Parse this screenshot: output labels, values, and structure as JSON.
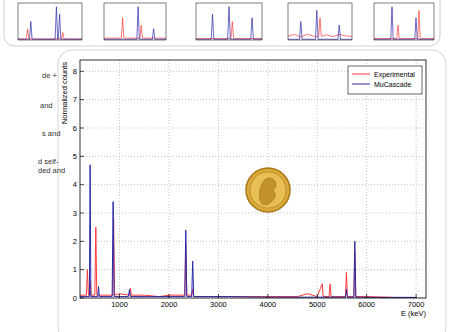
{
  "chart_data": [
    {
      "type": "line",
      "xlabel": "E (keV)",
      "ylabel": "Normalized counts",
      "xlim": [
        200,
        7200
      ],
      "ylim": [
        0,
        8.4
      ],
      "xticks": [
        1000,
        2000,
        3000,
        4000,
        5000,
        6000,
        7000
      ],
      "yticks": [
        0,
        1,
        2,
        3,
        4,
        5,
        6,
        7,
        8
      ],
      "grid": true,
      "legend": "upper right",
      "series": [
        {
          "name": "Experimental",
          "color": "#ff3b3b",
          "x": [
            200,
            330,
            350,
            370,
            395,
            410,
            425,
            500,
            520,
            540,
            860,
            880,
            900,
            1000,
            1200,
            1220,
            1240,
            1500,
            1800,
            2000,
            2320,
            2340,
            2360,
            2460,
            2480,
            2500,
            3000,
            3500,
            4000,
            4600,
            4800,
            5000,
            5100,
            5120,
            5240,
            5260,
            5280,
            5570,
            5590,
            5610,
            5740,
            5760,
            5780,
            6000,
            6600,
            7000
          ],
          "values": [
            0.1,
            0.1,
            1.0,
            0.1,
            0.1,
            0.6,
            0.1,
            0.1,
            2.5,
            0.1,
            0.1,
            2.8,
            0.1,
            0.15,
            0.1,
            0.35,
            0.1,
            0.1,
            0.05,
            0.1,
            0.1,
            1.9,
            0.1,
            0.1,
            0.3,
            0.05,
            0.05,
            0.05,
            0.05,
            0.05,
            0.15,
            0.05,
            0.5,
            0.05,
            0.05,
            0.5,
            0.05,
            0.05,
            0.9,
            0.05,
            0.05,
            1.6,
            0.05,
            0.05,
            0.02,
            0.02
          ]
        },
        {
          "name": "MuCascade",
          "color": "#2a2aa8",
          "x": [
            200,
            390,
            405,
            420,
            560,
            575,
            590,
            850,
            870,
            890,
            1180,
            1200,
            1220,
            1600,
            2320,
            2340,
            2360,
            2460,
            2480,
            2500,
            3200,
            4000,
            5570,
            5590,
            5610,
            5740,
            5760,
            5780,
            6200,
            7000
          ],
          "values": [
            0.05,
            0.05,
            4.7,
            0.05,
            0.05,
            0.4,
            0.05,
            0.05,
            3.4,
            0.05,
            0.05,
            0.3,
            0.05,
            0.05,
            0.05,
            2.4,
            0.05,
            0.05,
            1.3,
            0.05,
            0.05,
            0.03,
            0.03,
            0.3,
            0.03,
            0.03,
            2.0,
            0.03,
            0.02,
            0.02
          ]
        }
      ]
    },
    {
      "type": "line",
      "xlim": [
        0,
        100
      ],
      "ylim": [
        0,
        10
      ],
      "tick_labels": false,
      "series": [
        {
          "color": "#ff3b3b",
          "x": [
            0,
            13,
            15,
            17,
            68,
            70,
            72,
            100
          ],
          "values": [
            0.3,
            0.3,
            3,
            0.3,
            0.3,
            2,
            0.3,
            0.3
          ]
        },
        {
          "color": "#2a2aa8",
          "x": [
            0,
            18,
            20,
            22,
            58,
            60,
            62,
            63,
            65,
            67,
            100
          ],
          "values": [
            0.2,
            0.2,
            5,
            0.2,
            0.2,
            9,
            0.2,
            0.2,
            7,
            0.2,
            0.2
          ]
        }
      ]
    },
    {
      "type": "line",
      "xlim": [
        0,
        100
      ],
      "ylim": [
        0,
        10
      ],
      "tick_labels": false,
      "series": [
        {
          "color": "#ff3b3b",
          "x": [
            0,
            28,
            30,
            32,
            58,
            60,
            62,
            100
          ],
          "values": [
            0.5,
            0.5,
            6,
            0.5,
            0.5,
            4,
            0.5,
            0.5
          ]
        },
        {
          "color": "#2a2aa8",
          "x": [
            0,
            53,
            55,
            57,
            78,
            80,
            82,
            100
          ],
          "values": [
            0.2,
            0.2,
            9,
            0.2,
            0.2,
            3,
            0.2,
            0.2
          ]
        }
      ]
    },
    {
      "type": "line",
      "xlim": [
        0,
        100
      ],
      "ylim": [
        0,
        10
      ],
      "tick_labels": false,
      "series": [
        {
          "color": "#ff3b3b",
          "x": [
            0,
            53,
            55,
            57,
            100
          ],
          "values": [
            0.4,
            0.4,
            5,
            0.4,
            0.4
          ]
        },
        {
          "color": "#2a2aa8",
          "x": [
            0,
            23,
            25,
            27,
            48,
            50,
            52,
            83,
            85,
            87,
            100
          ],
          "values": [
            0.2,
            0.2,
            7,
            0.2,
            0.2,
            9,
            0.2,
            0.2,
            6,
            0.2,
            0.2
          ]
        }
      ]
    },
    {
      "type": "line",
      "xlim": [
        0,
        100
      ],
      "ylim": [
        0,
        10
      ],
      "tick_labels": false,
      "series": [
        {
          "color": "#ff3b3b",
          "x": [
            0,
            10,
            20,
            30,
            40,
            48,
            50,
            52,
            60,
            70,
            80,
            90,
            100
          ],
          "values": [
            1,
            1.5,
            0.8,
            1.6,
            1,
            1,
            6,
            1,
            1.4,
            0.9,
            1.5,
            1.1,
            1
          ]
        },
        {
          "color": "#2a2aa8",
          "x": [
            0,
            18,
            20,
            22,
            43,
            45,
            47,
            78,
            80,
            82,
            100
          ],
          "values": [
            0.2,
            0.2,
            5,
            0.2,
            0.2,
            8,
            0.2,
            0.2,
            4,
            0.2,
            0.2
          ]
        }
      ]
    },
    {
      "type": "line",
      "xlim": [
        0,
        100
      ],
      "ylim": [
        0,
        10
      ],
      "tick_labels": false,
      "series": [
        {
          "color": "#ff3b3b",
          "x": [
            0,
            38,
            40,
            42,
            73,
            75,
            77,
            100
          ],
          "values": [
            0.4,
            0.4,
            4,
            0.4,
            0.4,
            8,
            0.4,
            0.4
          ]
        },
        {
          "color": "#2a2aa8",
          "x": [
            0,
            28,
            30,
            32,
            68,
            70,
            72,
            100
          ],
          "values": [
            0.2,
            0.2,
            9,
            0.2,
            0.2,
            6,
            0.2,
            0.2
          ]
        }
      ]
    }
  ],
  "side_text": {
    "lines": [
      "de +",
      "and",
      "s and",
      "d self-",
      "ded and"
    ]
  }
}
